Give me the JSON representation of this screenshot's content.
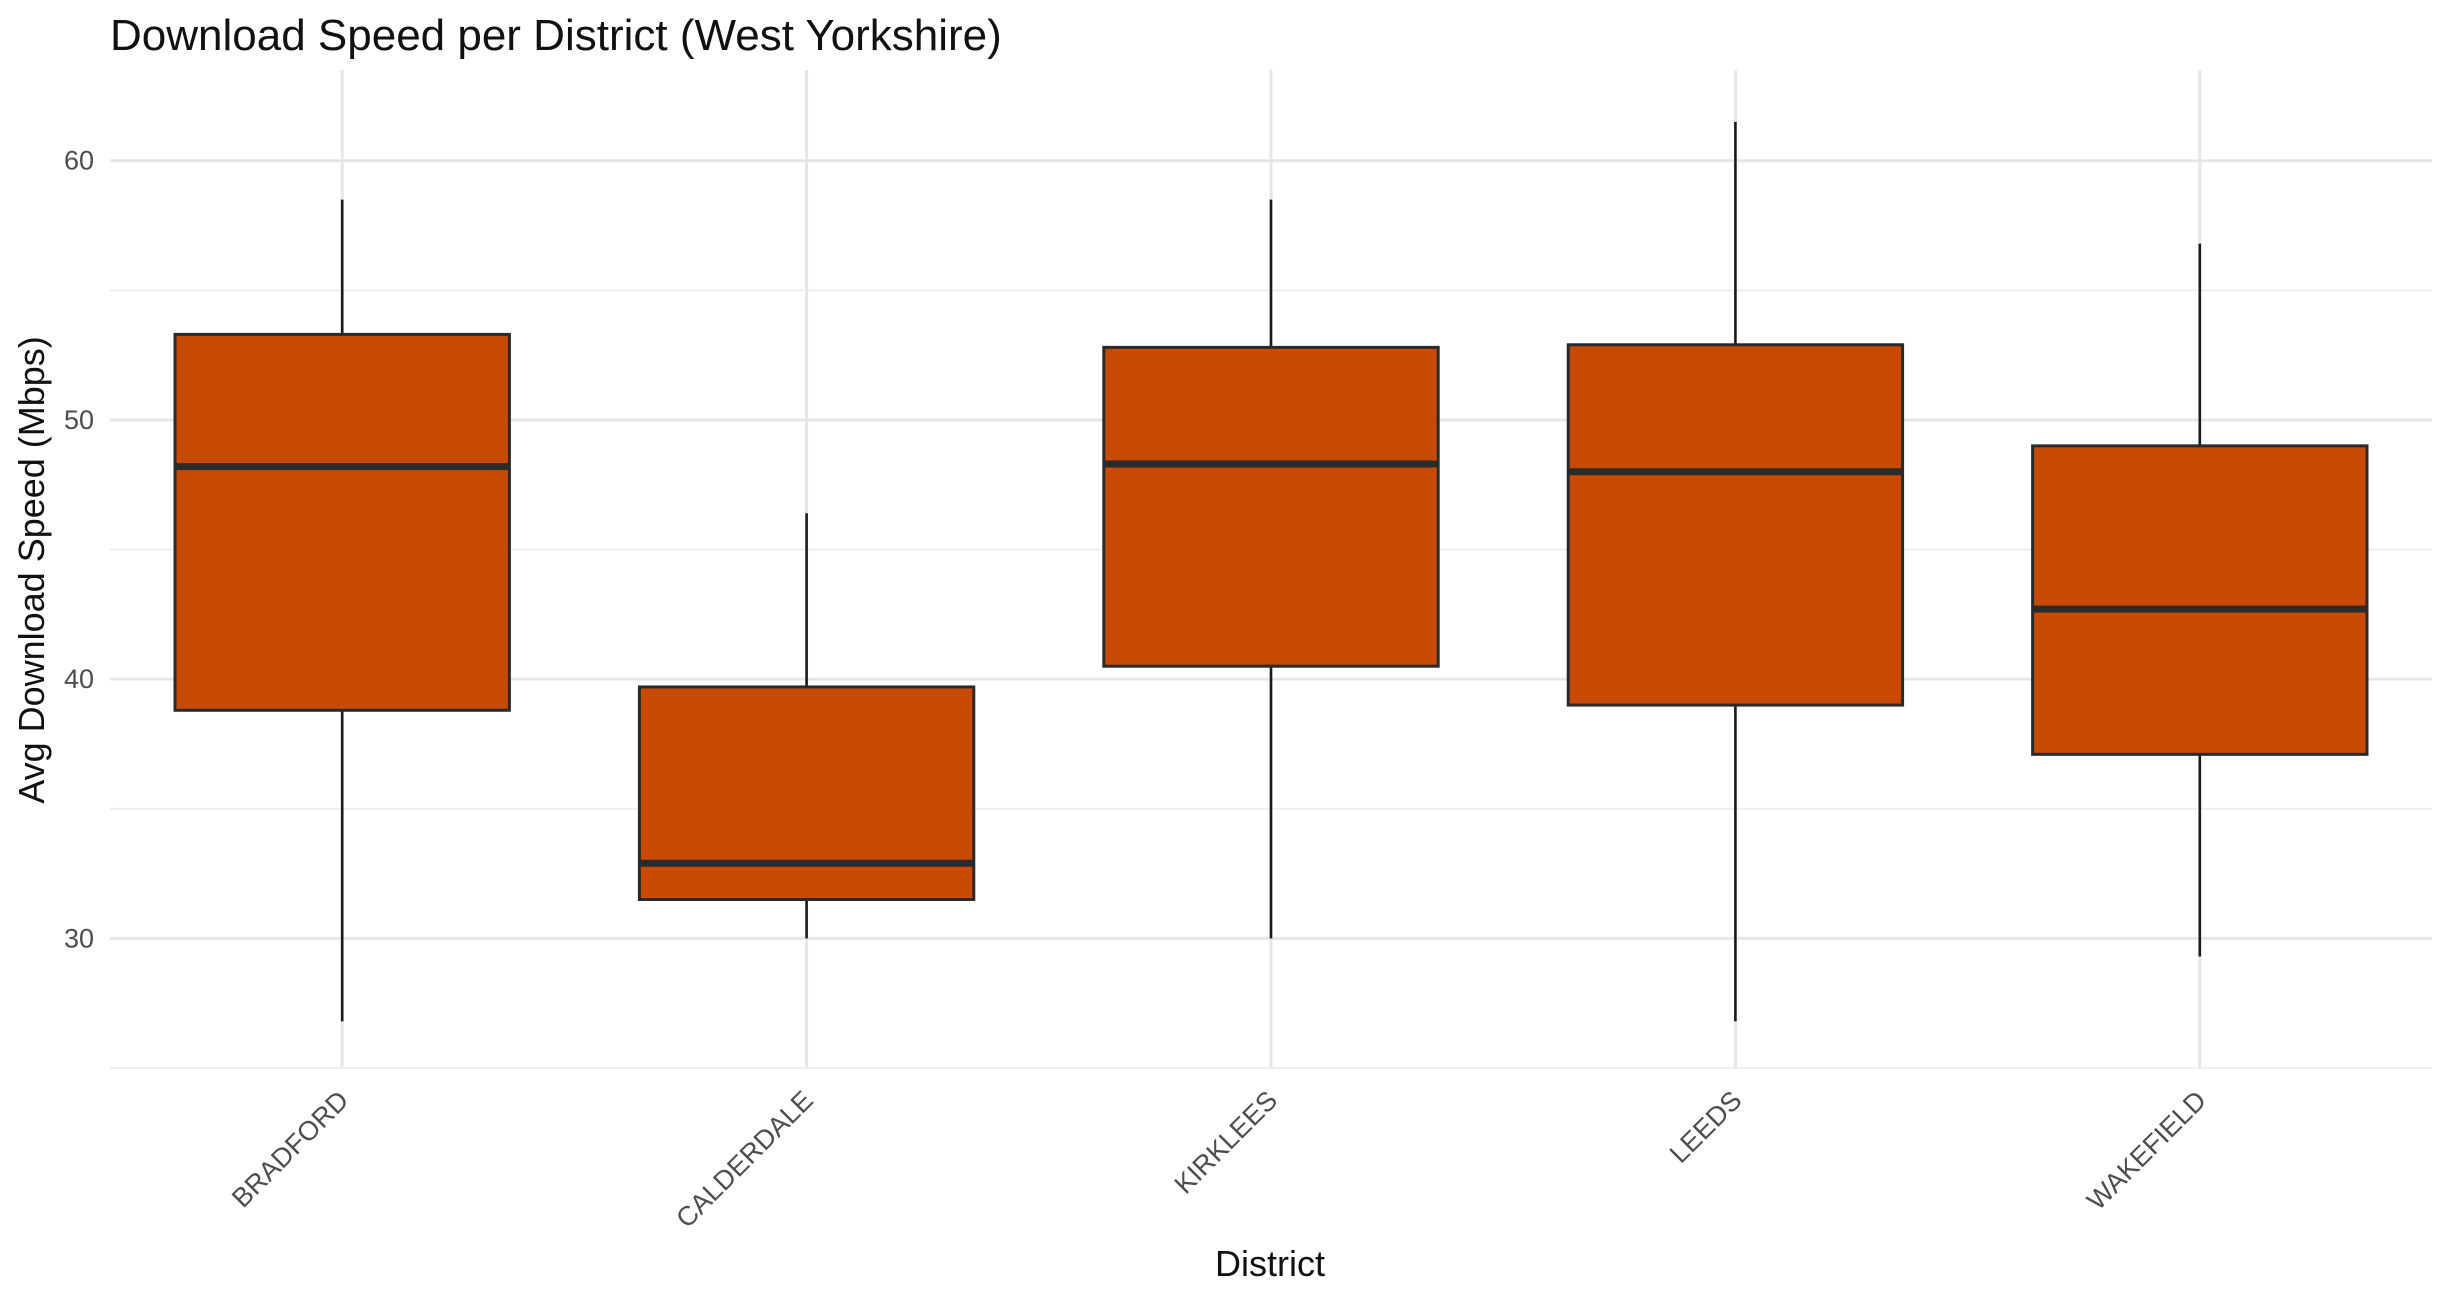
{
  "chart_data": {
    "type": "boxplot",
    "title": "Download Speed per District (West Yorkshire)",
    "xlabel": "District",
    "ylabel": "Avg Download Speed (Mbps)",
    "ylim": [
      25.0,
      63.5
    ],
    "y_ticks": [
      30,
      40,
      50,
      60
    ],
    "y_minor_ticks": [
      25,
      35,
      45,
      55
    ],
    "grid": true,
    "legend": "none",
    "fill_color": "#C94A05",
    "outline_color": "#2a2a2a",
    "categories": [
      "BRADFORD",
      "CALDERDALE",
      "KIRKLEES",
      "LEEDS",
      "WAKEFIELD"
    ],
    "boxes": [
      {
        "category": "BRADFORD",
        "min": 26.8,
        "q1": 38.8,
        "median": 48.2,
        "q3": 53.3,
        "max": 58.5
      },
      {
        "category": "CALDERDALE",
        "min": 30.0,
        "q1": 31.5,
        "median": 32.9,
        "q3": 39.7,
        "max": 46.4
      },
      {
        "category": "KIRKLEES",
        "min": 30.0,
        "q1": 40.5,
        "median": 48.3,
        "q3": 52.8,
        "max": 58.5
      },
      {
        "category": "LEEDS",
        "min": 26.8,
        "q1": 39.0,
        "median": 48.0,
        "q3": 52.9,
        "max": 61.5
      },
      {
        "category": "WAKEFIELD",
        "min": 29.3,
        "q1": 37.1,
        "median": 42.7,
        "q3": 49.0,
        "max": 56.8
      }
    ]
  }
}
